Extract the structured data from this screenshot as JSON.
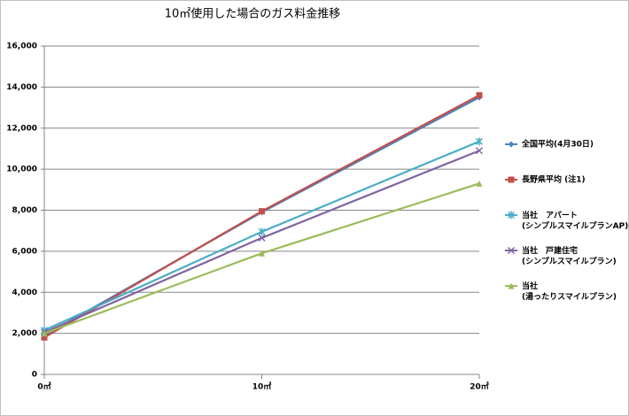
{
  "chart_data": {
    "type": "line",
    "title": "10㎡使用した場合のガス料金推移",
    "categories": [
      "0㎡",
      "10㎡",
      "20㎡"
    ],
    "series": [
      {
        "name": "全国平均(4月30日)",
        "color": "#4f81bd",
        "marker": "diamond",
        "values": [
          1900,
          7900,
          13500
        ]
      },
      {
        "name": "長野県平均 (注1)",
        "color": "#c0504d",
        "marker": "square",
        "values": [
          1800,
          7950,
          13600
        ]
      },
      {
        "name": "当社　アパート\n(シンプルスマイルプランAP)",
        "color": "#4bacc6",
        "marker": "star",
        "values": [
          2150,
          6950,
          11350
        ]
      },
      {
        "name": "当社　戸建住宅\n(シンプルスマイルプラン)",
        "color": "#8064a2",
        "marker": "x",
        "values": [
          2050,
          6650,
          10900
        ]
      },
      {
        "name": "当社\n(湯ったりスマイルプラン)",
        "color": "#9bbb59",
        "marker": "triangle",
        "values": [
          2000,
          5900,
          9300
        ]
      }
    ],
    "ylim": [
      0,
      16000
    ],
    "yticks": [
      0,
      {
        "value": 2000,
        "label": "2,000"
      },
      {
        "value": 4000,
        "label": "4,000"
      },
      {
        "value": 6000,
        "label": "6,000"
      },
      {
        "value": 8000,
        "label": "8,000"
      },
      {
        "value": 10000,
        "label": "10,000"
      },
      {
        "value": 12000,
        "label": "12,000"
      },
      {
        "value": 14000,
        "label": "14,000"
      },
      {
        "value": 16000,
        "label": "16,000"
      }
    ],
    "grid": true,
    "legend": "right"
  }
}
